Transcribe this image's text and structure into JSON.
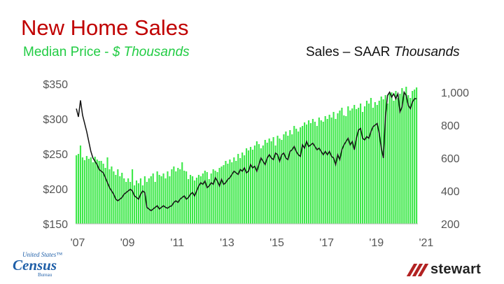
{
  "header": {
    "title": "New Home Sales",
    "left_subtitle_plain": "Median Price - ",
    "left_subtitle_italic": "$ Thousands",
    "right_subtitle_plain": "Sales – SAAR ",
    "right_subtitle_italic": "Thousands"
  },
  "logos": {
    "census_top": "United States™",
    "census_main": "Census",
    "census_bottom": "Bureau",
    "stewart_word": "stewart"
  },
  "colors": {
    "title": "#c00000",
    "bars": "#3ee84a",
    "line": "#111111",
    "left_subtitle": "#22cc44",
    "stewart_mark": "#b22222"
  },
  "chart_data": {
    "type": "bar",
    "x_range": [
      "2007-01",
      "2021-02"
    ],
    "x_tick_labels": [
      "'07",
      "'09",
      "'11",
      "'13",
      "'15",
      "'17",
      "'19",
      "'21"
    ],
    "left_axis": {
      "unit": "$ Thousands",
      "ylim": [
        150,
        350
      ],
      "tick_labels": [
        "$350",
        "$300",
        "$250",
        "$200",
        "$150"
      ],
      "tick_values": [
        350,
        300,
        250,
        200,
        150
      ]
    },
    "right_axis": {
      "unit": "Thousands",
      "ylim": [
        200,
        1050
      ],
      "tick_labels": [
        "1,000",
        "800",
        "600",
        "400",
        "200"
      ],
      "tick_values": [
        1000,
        800,
        600,
        400,
        200
      ]
    },
    "series": [
      {
        "name": "Median Price",
        "type": "bar",
        "axis": "left",
        "values": [
          248,
          250,
          262,
          245,
          241,
          247,
          243,
          245,
          238,
          246,
          242,
          240,
          240,
          236,
          230,
          245,
          228,
          232,
          225,
          220,
          228,
          218,
          223,
          215,
          210,
          215,
          210,
          228,
          205,
          212,
          208,
          215,
          205,
          218,
          210,
          215,
          218,
          222,
          210,
          225,
          220,
          218,
          222,
          215,
          225,
          218,
          228,
          232,
          225,
          230,
          228,
          238,
          226,
          225,
          214,
          220,
          218,
          212,
          216,
          220,
          218,
          222,
          226,
          224,
          214,
          222,
          228,
          226,
          224,
          230,
          232,
          234,
          240,
          236,
          242,
          238,
          245,
          240,
          250,
          244,
          252,
          248,
          258,
          255,
          260,
          256,
          262,
          268,
          264,
          258,
          262,
          270,
          266,
          272,
          268,
          274,
          262,
          276,
          272,
          270,
          278,
          282,
          276,
          284,
          278,
          290,
          286,
          282,
          288,
          290,
          295,
          292,
          298,
          294,
          300,
          296,
          290,
          302,
          298,
          296,
          304,
          300,
          306,
          302,
          310,
          300,
          308,
          312,
          316,
          305,
          304,
          318,
          312,
          315,
          320,
          314,
          316,
          322,
          310,
          318,
          326,
          322,
          330,
          316,
          324,
          320,
          326,
          332,
          328,
          334,
          322,
          336,
          338,
          326,
          340,
          330,
          336,
          344,
          338,
          346,
          334,
          330,
          340,
          342,
          345
        ]
      },
      {
        "name": "Sales",
        "type": "line",
        "axis": "right",
        "values": [
          900,
          850,
          950,
          860,
          810,
          760,
          700,
          640,
          600,
          580,
          560,
          530,
          520,
          510,
          480,
          450,
          420,
          400,
          380,
          350,
          340,
          350,
          360,
          380,
          390,
          400,
          410,
          400,
          370,
          360,
          350,
          380,
          400,
          390,
          300,
          290,
          280,
          290,
          300,
          310,
          290,
          300,
          310,
          300,
          295,
          305,
          310,
          330,
          340,
          330,
          350,
          360,
          370,
          350,
          360,
          380,
          390,
          370,
          400,
          430,
          450,
          440,
          460,
          420,
          430,
          450,
          440,
          480,
          460,
          430,
          470,
          440,
          450,
          470,
          480,
          500,
          520,
          510,
          500,
          530,
          520,
          540,
          510,
          520,
          560,
          540,
          550,
          520,
          560,
          600,
          580,
          560,
          600,
          620,
          600,
          590,
          630,
          620,
          580,
          620,
          630,
          600,
          590,
          640,
          650,
          670,
          640,
          620,
          610,
          680,
          660,
          700,
          670,
          680,
          690,
          670,
          650,
          660,
          640,
          620,
          640,
          620,
          640,
          610,
          600,
          560,
          620,
          590,
          650,
          680,
          700,
          720,
          680,
          700,
          650,
          720,
          770,
          780,
          720,
          710,
          730,
          720,
          760,
          790,
          800,
          810,
          750,
          660,
          600,
          850,
          980,
          1000,
          970,
          990,
          960,
          990,
          880,
          910,
          1000,
          980,
          920,
          900,
          940,
          960,
          960
        ]
      }
    ]
  }
}
